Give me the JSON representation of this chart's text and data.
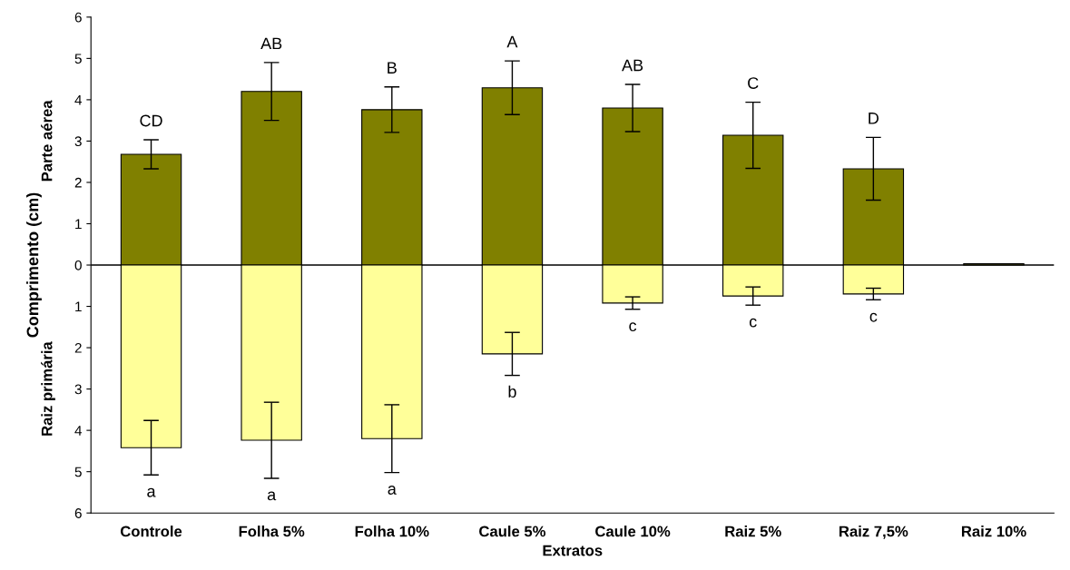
{
  "chart_data": {
    "type": "bar",
    "stacked": true,
    "xlabel": "Extratos",
    "ylabel": "Comprimento (cm)",
    "categories": [
      "Controle",
      "Folha 5%",
      "Folha 10%",
      "Caule 5%",
      "Caule 10%",
      "Raiz 5%",
      "Raiz 7,5%",
      "Raiz 10%"
    ],
    "series": [
      {
        "color": "#808000",
        "values": [
          2.68,
          4.2,
          3.76,
          4.29,
          3.8,
          3.14,
          2.33,
          0.03
        ],
        "errors": [
          0.35,
          0.7,
          0.55,
          0.65,
          0.57,
          0.8,
          0.76,
          null
        ]
      },
      {
        "color": "#ffff99",
        "values": [
          -4.42,
          -4.24,
          -4.2,
          -2.15,
          -0.92,
          -0.75,
          -0.7,
          null
        ],
        "errors": [
          0.66,
          0.92,
          0.82,
          0.52,
          0.15,
          0.22,
          0.14,
          null
        ]
      }
    ],
    "ylim": [
      -6,
      6
    ],
    "yticks": [
      {
        "value": -6,
        "label": "6"
      },
      {
        "value": -5,
        "label": "5"
      },
      {
        "value": -4,
        "label": "4"
      },
      {
        "value": -3,
        "label": "3"
      },
      {
        "value": -2,
        "label": "2"
      },
      {
        "value": -1,
        "label": "1"
      },
      0,
      1,
      2,
      3,
      4,
      5,
      6
    ],
    "grid": false,
    "legend": false,
    "ref_lines": [
      {
        "axis": "y",
        "value": 0,
        "color": "#000000"
      }
    ],
    "annotations": [
      "Parte aérea",
      "Raiz primária",
      {
        "text": "CD",
        "x": "Controle",
        "y": 3.03
      },
      {
        "text": "AB",
        "x": "Folha 5%",
        "y": 4.9
      },
      {
        "text": "B",
        "x": "Folha 10%",
        "y": 4.31
      },
      {
        "text": "A",
        "x": "Caule 5%",
        "y": 4.94
      },
      {
        "text": "AB",
        "x": "Caule 10%",
        "y": 4.37
      },
      {
        "text": "C",
        "x": "Raiz 5%",
        "y": 3.94
      },
      {
        "text": "D",
        "x": "Raiz 7,5%",
        "y": 3.09
      },
      {
        "text": "a",
        "x": "Controle",
        "y": -5.08
      },
      {
        "text": "a",
        "x": "Folha 5%",
        "y": -5.16
      },
      {
        "text": "a",
        "x": "Folha 10%",
        "y": -5.02
      },
      {
        "text": "b",
        "x": "Caule 5%",
        "y": -2.67
      },
      {
        "text": "c",
        "x": "Caule 10%",
        "y": -1.07
      },
      {
        "text": "c",
        "x": "Raiz 5%",
        "y": -0.97
      },
      {
        "text": "c",
        "x": "Raiz 7,5%",
        "y": -0.84
      }
    ]
  }
}
